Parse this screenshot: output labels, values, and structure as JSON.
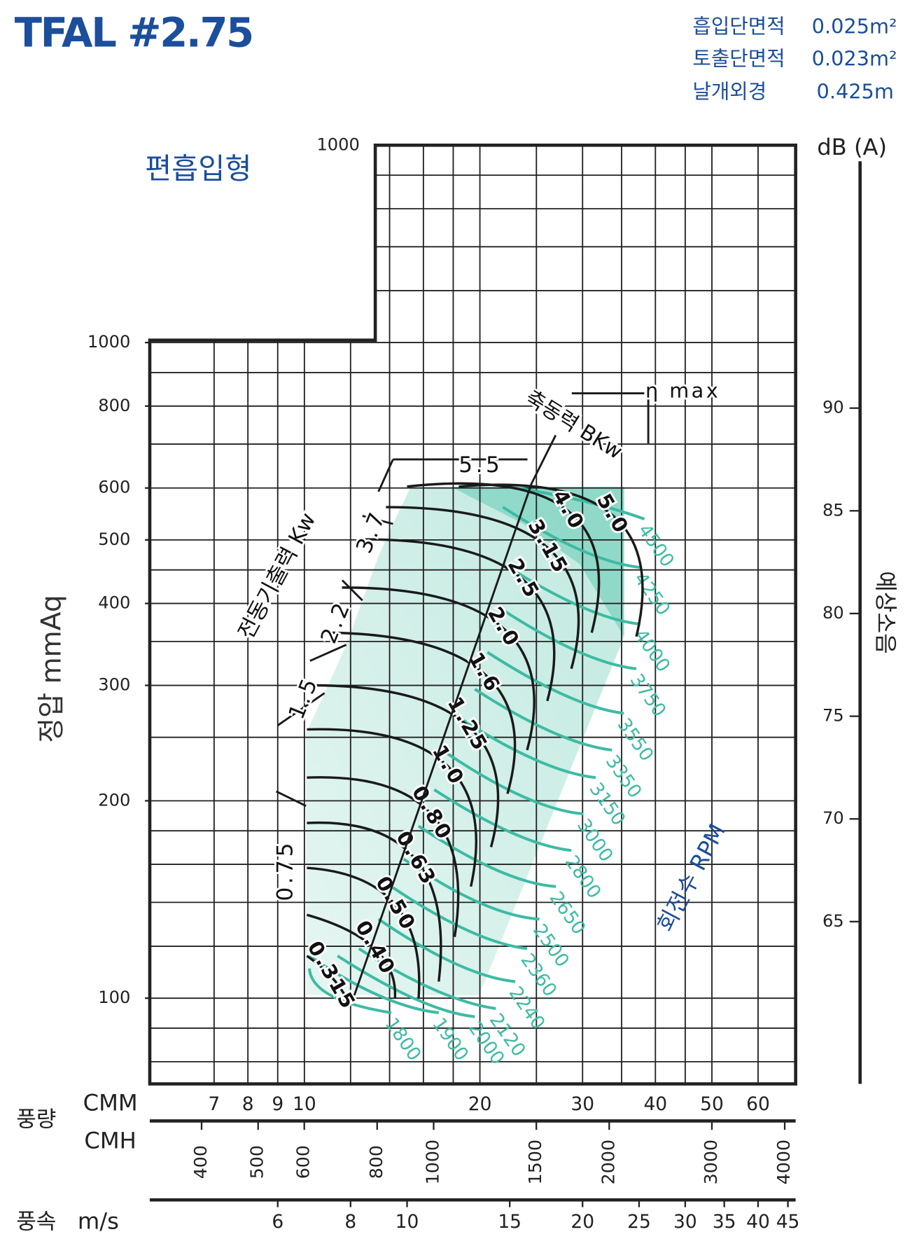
{
  "chart_data": {
    "type": "fan",
    "title": "TFAL #2.75",
    "specs": [
      {
        "label": "흡입단면적",
        "value": "0.025m²"
      },
      {
        "label": "토출단면적",
        "value": "0.023m²"
      },
      {
        "label": "날개외경",
        "value": "0.425m"
      }
    ],
    "subtitle": "편흡입형",
    "ylabel": "정압 mmAq",
    "y_top_label": "1000",
    "yscale": "log",
    "ylim": [
      74,
      2000
    ],
    "yticks": [
      100,
      200,
      300,
      400,
      500,
      600,
      800,
      1000
    ],
    "ygrid": [
      80,
      90,
      100,
      120,
      140,
      160,
      180,
      200,
      250,
      300,
      350,
      400,
      450,
      500,
      600,
      700,
      800,
      900,
      1000,
      1200,
      1400,
      1600,
      1800
    ],
    "xscale": "log",
    "xlim": [
      5.43,
      69.6
    ],
    "flow_label": "풍량",
    "xlabel": "CMM",
    "xticks": [
      7,
      8,
      9,
      10,
      20,
      30,
      40,
      50,
      60
    ],
    "xgrid": [
      7,
      8,
      9,
      10,
      12,
      14,
      16,
      18,
      20,
      25,
      30,
      35,
      40,
      45,
      50,
      60
    ],
    "x2label": "CMH",
    "x2lim": [
      326,
      4176
    ],
    "x2ticks": [
      400,
      500,
      600,
      800,
      1000,
      1500,
      2000,
      3000,
      4000
    ],
    "speed_label": "풍속",
    "x3label": "m/s",
    "x3lim": [
      3.62,
      46.4
    ],
    "x3ticks": [
      6,
      8,
      10,
      15,
      20,
      25,
      30,
      35,
      40,
      45
    ],
    "y2label": "dB (A)",
    "y2title": "예상소음",
    "y2lim": [
      57.1,
      102.8
    ],
    "y2ticks": [
      65,
      70,
      75,
      80,
      85,
      90
    ],
    "rpm_label": "회전수 RPM",
    "rpm_color": "#3dbba3",
    "rpm_curves": [
      {
        "name": "4500",
        "x": [
          22.3,
          30.1,
          38.3
        ],
        "y": [
          603,
          573,
          538
        ]
      },
      {
        "name": "4250",
        "x": [
          21.9,
          29.7,
          37.7
        ],
        "y": [
          561,
          483,
          454
        ]
      },
      {
        "name": "4000",
        "x": [
          21.9,
          29.7,
          37.7
        ],
        "y": [
          460,
          396,
          372
        ]
      },
      {
        "name": "3750",
        "x": [
          21.6,
          29.2,
          37.1
        ],
        "y": [
          394,
          339,
          318
        ]
      },
      {
        "name": "3550",
        "x": [
          20.6,
          27.9,
          35.3
        ],
        "y": [
          337,
          290,
          272
        ]
      },
      {
        "name": "3350",
        "x": [
          19.6,
          26.5,
          33.7
        ],
        "y": [
          296,
          255,
          239
        ]
      },
      {
        "name": "3150",
        "x": [
          18.4,
          24.9,
          31.6
        ],
        "y": [
          268,
          231,
          217
        ]
      },
      {
        "name": "3000",
        "x": [
          17.6,
          23.7,
          30.1
        ],
        "y": [
          236,
          203,
          191
        ]
      },
      {
        "name": "2800",
        "x": [
          16.7,
          22.6,
          28.7
        ],
        "y": [
          208,
          179,
          168
        ]
      },
      {
        "name": "2650",
        "x": [
          15.7,
          21.3,
          27.0
        ],
        "y": [
          183,
          157,
          148
        ]
      },
      {
        "name": "2500",
        "x": [
          14.8,
          19.9,
          25.3
        ],
        "y": [
          163,
          140,
          132
        ]
      },
      {
        "name": "2360",
        "x": [
          14.1,
          19.0,
          24.1
        ],
        "y": [
          148,
          127,
          119
        ]
      },
      {
        "name": "2240",
        "x": [
          13.4,
          18.1,
          23.0
        ],
        "y": [
          132,
          113,
          106
        ]
      },
      {
        "name": "2120",
        "x": [
          12.4,
          16.7,
          21.3
        ],
        "y": [
          119,
          103,
          96.4
        ]
      },
      {
        "name": "2000",
        "x": [
          11.4,
          15.5,
          19.6
        ],
        "y": [
          116,
          99.7,
          93.7
        ]
      },
      {
        "name": "1900",
        "x": [
          10.2,
          13.4,
          17.0
        ],
        "y": [
          116,
          101,
          95.0
        ]
      },
      {
        "name": "1800",
        "x": [
          10.2,
          11.1,
          14.1
        ],
        "y": [
          111,
          101,
          95.0
        ]
      }
    ],
    "power_label": "축동력 BKw",
    "power_curves": [
      {
        "name": "5.0",
        "x": [
          18.4,
          33.7,
          37.1
        ],
        "y": [
          603,
          546,
          356
        ]
      },
      {
        "name": "4.0",
        "x": [
          15.0,
          28.3,
          31.1
        ],
        "y": [
          603,
          554,
          361
        ]
      },
      {
        "name": "3.15",
        "x": [
          13.8,
          26.1,
          28.7
        ],
        "y": [
          561,
          487,
          318
        ]
      },
      {
        "name": "2.5",
        "x": [
          12.6,
          23.7,
          26.1
        ],
        "y": [
          501,
          435,
          284
        ]
      },
      {
        "name": "2.0",
        "x": [
          11.6,
          21.9,
          24.1
        ],
        "y": [
          423,
          367,
          239
        ]
      },
      {
        "name": "1.6",
        "x": [
          10.7,
          20.3,
          22.3
        ],
        "y": [
          361,
          313,
          205
        ]
      },
      {
        "name": "1.25",
        "x": [
          10.1,
          19.0,
          20.9
        ],
        "y": [
          300,
          261,
          170
        ]
      },
      {
        "name": "1.0",
        "x": [
          10.1,
          17.6,
          19.3
        ],
        "y": [
          257,
          226,
          148
        ]
      },
      {
        "name": "0.80",
        "x": [
          10.1,
          16.5,
          18.1
        ],
        "y": [
          217,
          191,
          124
        ]
      },
      {
        "name": "0.63",
        "x": [
          10.1,
          15.5,
          17.0
        ],
        "y": [
          185,
          163,
          106
        ]
      },
      {
        "name": "0.50",
        "x": [
          10.1,
          14.3,
          15.7
        ],
        "y": [
          158,
          139,
          100
        ]
      },
      {
        "name": "0.40",
        "x": [
          10.1,
          13.2,
          14.3
        ],
        "y": [
          134,
          119,
          100
        ]
      },
      {
        "name": "0.315",
        "x": [
          10.1,
          11.1,
          11.8
        ],
        "y": [
          116,
          108,
          100
        ]
      }
    ],
    "motor_label": "전동기출력 Kw",
    "motor_outputs": [
      "0.75",
      "1.5",
      "2.2",
      "3.7",
      "5.5"
    ],
    "eta_label": "η max"
  }
}
